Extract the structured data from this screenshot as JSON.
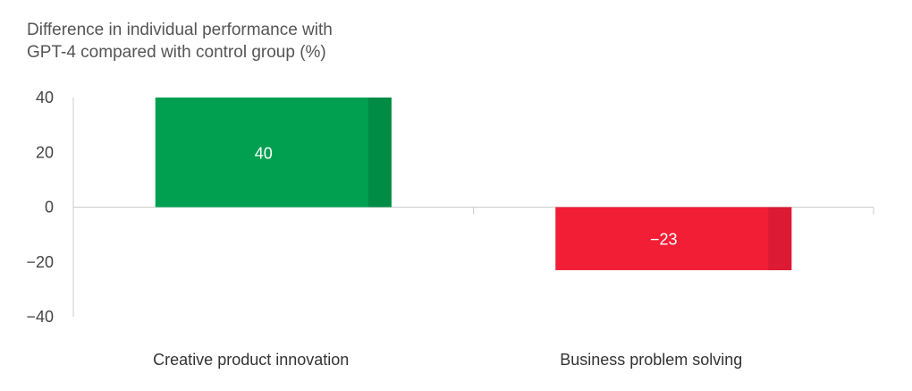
{
  "chart_data": {
    "type": "bar",
    "title_lines": [
      "Difference in individual performance with",
      "GPT-4 compared with control group (%)"
    ],
    "categories": [
      "Creative product innovation",
      "Business problem solving"
    ],
    "values": [
      40,
      -23
    ],
    "data_labels": [
      "40",
      "−23"
    ],
    "yticks": [
      40,
      20,
      0,
      -20,
      -40
    ],
    "ytick_labels": [
      "40",
      "20",
      "0",
      "−20",
      "−40"
    ],
    "ylim": [
      -40,
      40
    ],
    "colors": {
      "positive": "#00A050",
      "positive_shade": "#008C45",
      "negative": "#F21E36",
      "negative_shade": "#DC1A33",
      "axis": "#cccccc"
    }
  }
}
